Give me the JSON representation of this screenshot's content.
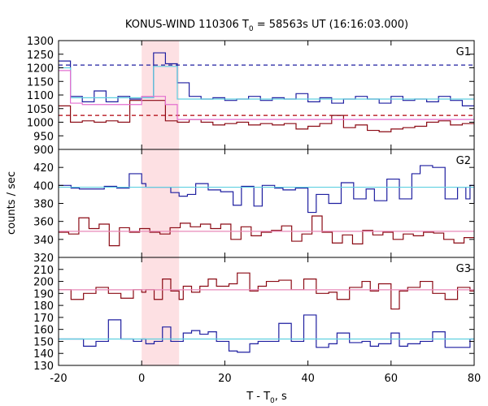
{
  "figure": {
    "title_main": "KONUS-WIND 110306 T",
    "title_sub": "0",
    "title_tail": " = 58563s UT (16:16:03.000)",
    "ylabel": "counts / sec",
    "xlabel_main": "T - T",
    "xlabel_sub": "0",
    "xlabel_tail": ", s"
  },
  "colors": {
    "blue": "#1f1fa0",
    "darkred": "#8b0a14",
    "cyan": "#5fd0e0",
    "pink": "#e36fd0",
    "pinkfit": "#e88ab8",
    "band": "#fde0e3",
    "dashblue": "#1f1fa0",
    "dashred": "#b0000a"
  },
  "chart_data": {
    "type": "line",
    "x_range": [
      -20,
      80
    ],
    "x_ticks": [
      -20,
      0,
      20,
      40,
      60,
      80
    ],
    "highlight_interval": [
      0,
      9
    ],
    "bin_edges": [
      -20,
      -18,
      -15,
      -12,
      -9,
      -6,
      -3,
      0,
      1,
      4,
      7,
      10,
      13,
      16,
      19,
      22,
      25,
      28,
      31,
      34,
      37,
      40,
      43,
      46,
      49,
      52,
      55,
      58,
      61,
      64,
      67,
      70,
      73,
      76,
      79,
      80
    ],
    "panels": [
      {
        "name": "G1",
        "ylim": [
          900,
          1300
        ],
        "yticks": [
          900,
          950,
          1000,
          1050,
          1100,
          1150,
          1200,
          1250,
          1300
        ],
        "series": [
          {
            "name": "G1 blue",
            "color": "blue",
            "values": [
              1225,
              1095,
              1075,
              1115,
              1075,
              1095,
              1085,
              1090,
              1255,
              1215,
              1145,
              1095,
              1085,
              1090,
              1080,
              1085,
              1095,
              1080,
              1090,
              1085,
              1105,
              1075,
              1090,
              1070,
              1085,
              1095,
              1085,
              1070,
              1095,
              1080,
              1085,
              1075,
              1095,
              1080,
              1060
            ]
          },
          {
            "name": "G1 darkred",
            "color": "darkred",
            "values": [
              1060,
              1000,
              1005,
              1000,
              1005,
              1000,
              1080,
              1080,
              1080,
              1005,
              1000,
              1010,
              1000,
              990,
              995,
              1000,
              990,
              995,
              990,
              995,
              975,
              985,
              995,
              1025,
              980,
              990,
              970,
              965,
              975,
              980,
              985,
              1000,
              1005,
              990,
              995
            ]
          },
          {
            "name": "G1 cyan",
            "color": "cyan",
            "values": [
              1200,
              1090,
              1090,
              1090,
              1090,
              1090,
              1090,
              1090,
              1205,
              1205,
              1085,
              1085,
              1085,
              1085,
              1085,
              1085,
              1085,
              1085,
              1085,
              1085,
              1085,
              1085,
              1085,
              1085,
              1085,
              1085,
              1085,
              1085,
              1085,
              1085,
              1085,
              1085,
              1085,
              1085,
              1085
            ]
          },
          {
            "name": "G1 pink",
            "color": "pink",
            "values": [
              1190,
              1070,
              1065,
              1065,
              1065,
              1065,
              1065,
              1095,
              1095,
              1065,
              1010,
              1010,
              1010,
              1010,
              1010,
              1010,
              1010,
              1010,
              1010,
              1010,
              1010,
              1010,
              1010,
              1010,
              1010,
              1010,
              1010,
              1010,
              1010,
              1010,
              1010,
              1010,
              1010,
              1010,
              1010
            ]
          }
        ],
        "dashed_levels": [
          {
            "value": 1210,
            "color": "dashblue"
          },
          {
            "value": 1025,
            "color": "dashred"
          }
        ]
      },
      {
        "name": "G2",
        "ylim": [
          320,
          440
        ],
        "yticks": [
          320,
          340,
          360,
          380,
          400,
          420
        ],
        "series": [
          {
            "name": "G2 blue",
            "color": "blue",
            "values": [
              400,
              397,
              396,
              396,
              399,
              397,
              413,
              402,
              398,
              398,
              398,
              392,
              388,
              390,
              402,
              395,
              393,
              378,
              399,
              377,
              400,
              397,
              395,
              397,
              370,
              390,
              380,
              403,
              385,
              396,
              383,
              407,
              385,
              413,
              422,
              420,
              385,
              398,
              385,
              400,
              393,
              380
            ],
            "custom_x": [
              -20,
              -17,
              -15,
              -12,
              -9,
              -6,
              -3,
              0,
              1,
              3,
              5,
              7,
              9,
              11,
              13,
              16,
              19,
              22,
              24,
              27,
              29,
              32,
              34,
              37,
              40,
              42,
              45,
              48,
              51,
              54,
              56,
              59,
              62,
              65,
              67,
              70,
              73,
              76,
              78,
              79,
              80,
              80
            ]
          },
          {
            "name": "G2 darkred",
            "color": "darkred",
            "values": [
              348,
              346,
              364,
              352,
              357,
              333,
              353,
              348,
              352,
              348,
              346,
              353,
              358,
              354,
              357,
              352,
              357,
              340,
              354,
              344,
              348,
              350,
              355,
              338,
              346,
              366,
              348,
              336,
              345,
              335,
              350,
              345,
              348,
              340,
              346,
              344,
              348,
              347,
              340,
              336,
              342
            ]
          },
          {
            "name": "G2 cyan",
            "color": "cyan",
            "values": [
              398,
              398,
              398,
              398,
              398,
              398,
              398,
              398,
              398,
              398,
              398,
              398,
              398,
              398,
              398,
              398,
              398,
              398,
              398,
              398,
              398,
              398,
              398,
              398,
              398,
              398,
              398,
              398,
              398,
              398,
              398,
              398,
              398,
              398,
              398,
              398,
              398,
              398,
              398,
              398,
              398
            ]
          },
          {
            "name": "G2 pinkfit",
            "color": "pinkfit",
            "values": [
              349,
              349,
              349,
              349,
              349,
              349,
              349,
              349,
              349,
              349,
              349,
              349,
              349,
              349,
              349,
              349,
              349,
              349,
              349,
              349,
              349,
              349,
              349,
              349,
              349,
              349,
              349,
              349,
              349,
              349,
              349,
              349,
              349,
              349,
              349,
              349,
              349,
              349,
              349,
              349,
              349
            ]
          }
        ]
      },
      {
        "name": "G3",
        "ylim": [
          130,
          220
        ],
        "yticks": [
          130,
          140,
          150,
          160,
          170,
          180,
          190,
          200,
          210
        ],
        "series": [
          {
            "name": "G3 blue",
            "color": "blue",
            "values": [
              152,
              152,
              146,
              150,
              168,
              152,
              150,
              152,
              148,
              150,
              162,
              150,
              150,
              157,
              159,
              156,
              158,
              150,
              142,
              141,
              148,
              150,
              150,
              165,
              150,
              172,
              145,
              148,
              157,
              149,
              150,
              146,
              148,
              157,
              146,
              148,
              150,
              158,
              145,
              145,
              152
            ],
            "custom_x": [
              -20,
              -17,
              -14,
              -11,
              -8,
              -5,
              -2,
              0,
              1,
              3,
              5,
              7,
              9,
              10,
              12,
              14,
              16,
              18,
              21,
              23,
              26,
              28,
              30,
              33,
              36,
              39,
              42,
              45,
              47,
              50,
              53,
              55,
              57,
              60,
              62,
              64,
              67,
              70,
              73,
              76,
              79
            ]
          },
          {
            "name": "G3 darkred",
            "color": "darkred",
            "values": [
              193,
              185,
              190,
              195,
              190,
              186,
              193,
              191,
              193,
              185,
              202,
              192,
              185,
              196,
              191,
              196,
              202,
              196,
              198,
              207,
              192,
              196,
              200,
              201,
              193,
              202,
              190,
              191,
              185,
              195,
              200,
              192,
              198,
              177,
              192,
              195,
              200,
              190,
              185,
              195,
              192
            ],
            "custom_x": [
              -20,
              -17,
              -14,
              -11,
              -8,
              -5,
              -2,
              0,
              1,
              3,
              5,
              7,
              9,
              10,
              12,
              14,
              16,
              18,
              21,
              23,
              26,
              28,
              30,
              33,
              36,
              39,
              42,
              45,
              47,
              50,
              53,
              55,
              57,
              60,
              62,
              64,
              67,
              70,
              73,
              76,
              79
            ]
          },
          {
            "name": "G3 cyan",
            "color": "cyan",
            "values": [
              152,
              152,
              152,
              152,
              152,
              152,
              152,
              152,
              152,
              152,
              152,
              152,
              152,
              152,
              152,
              152,
              152,
              152,
              152,
              152,
              152,
              152,
              152,
              152,
              152,
              152,
              152,
              152,
              152,
              152,
              152,
              152,
              152,
              152,
              152,
              152,
              152,
              152,
              152,
              152,
              152
            ]
          },
          {
            "name": "G3 pinkfit",
            "color": "pinkfit",
            "values": [
              193,
              193,
              193,
              193,
              193,
              193,
              193,
              193,
              193,
              193,
              193,
              193,
              193,
              193,
              193,
              193,
              193,
              193,
              193,
              193,
              193,
              193,
              193,
              193,
              193,
              193,
              193,
              193,
              193,
              193,
              193,
              193,
              193,
              193,
              193,
              193,
              193,
              193,
              193,
              193,
              193
            ]
          }
        ]
      }
    ]
  }
}
